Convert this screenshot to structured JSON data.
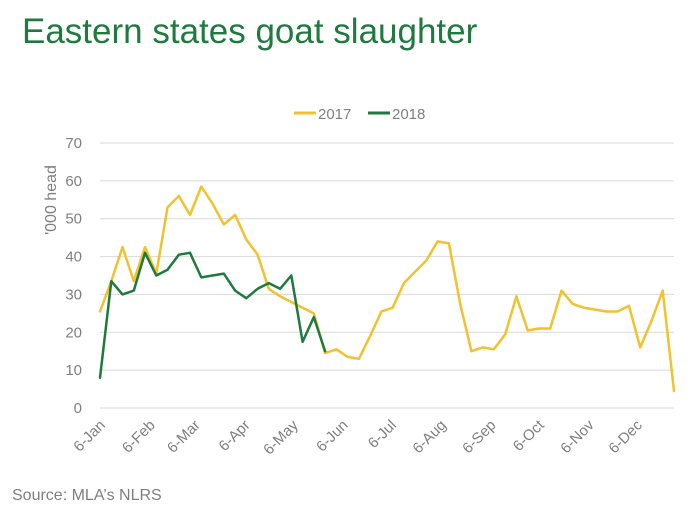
{
  "title": "Eastern states goat slaughter",
  "source": "Source: MLA’s NLRS",
  "chart_data": {
    "type": "line",
    "title": "Eastern states goat slaughter",
    "ylabel": "'000 head",
    "xlabel": "",
    "ylim": [
      0,
      70
    ],
    "yticks": [
      0,
      10,
      20,
      30,
      40,
      50,
      60,
      70
    ],
    "xlim": [
      1,
      52
    ],
    "xticks": [
      {
        "label": "6-Jan",
        "x": 1
      },
      {
        "label": "6-Feb",
        "x": 5.43
      },
      {
        "label": "6-Mar",
        "x": 9.43
      },
      {
        "label": "6-Apr",
        "x": 13.86
      },
      {
        "label": "6-May",
        "x": 18.14
      },
      {
        "label": "6-Jun",
        "x": 22.57
      },
      {
        "label": "6-Jul",
        "x": 26.86
      },
      {
        "label": "6-Aug",
        "x": 31.29
      },
      {
        "label": "6-Sep",
        "x": 35.71
      },
      {
        "label": "6-Oct",
        "x": 40
      },
      {
        "label": "6-Nov",
        "x": 44.43
      },
      {
        "label": "6-Dec",
        "x": 48.71
      }
    ],
    "grid": "horizontal",
    "legend_position": "top",
    "series": [
      {
        "name": "2017",
        "color": "#f2c12e",
        "x": [
          1,
          2,
          3,
          4,
          5,
          6,
          7,
          8,
          9,
          10,
          11,
          12,
          13,
          14,
          15,
          16,
          17,
          18,
          19,
          20,
          21,
          22,
          23,
          24,
          25,
          26,
          27,
          28,
          29,
          30,
          31,
          32,
          33,
          34,
          35,
          36,
          37,
          38,
          39,
          40,
          41,
          42,
          43,
          44,
          45,
          46,
          47,
          48,
          49,
          50,
          51,
          52
        ],
        "values": [
          25.5,
          33.5,
          42.5,
          33.5,
          42.5,
          35.5,
          53,
          56,
          51,
          58.5,
          54,
          48.5,
          51,
          44.5,
          40.5,
          31.5,
          29.5,
          28,
          26.5,
          25,
          14.5,
          15.5,
          13.5,
          13,
          19,
          25.5,
          26.5,
          33,
          36,
          39,
          44,
          43.5,
          27.5,
          15,
          16,
          15.5,
          19.5,
          29.5,
          20.5,
          21,
          21,
          31,
          27.5,
          26.5,
          26,
          25.5,
          25.5,
          27,
          16,
          23,
          31,
          4.5
        ]
      },
      {
        "name": "2018",
        "color": "#1f7a3e",
        "x": [
          1,
          2,
          3,
          4,
          5,
          6,
          7,
          8,
          9,
          10,
          11,
          12,
          13,
          14,
          15,
          16,
          17,
          18,
          19,
          20,
          21
        ],
        "values": [
          8,
          33.5,
          30,
          31,
          41,
          35,
          36.5,
          40.5,
          41,
          34.5,
          35,
          35.5,
          31,
          29,
          31.5,
          33,
          31.5,
          35,
          17.5,
          24,
          15
        ]
      }
    ]
  }
}
